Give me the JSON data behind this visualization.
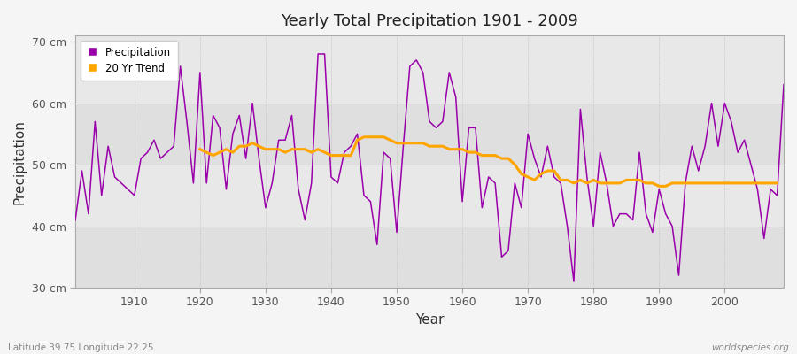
{
  "title": "Yearly Total Precipitation 1901 - 2009",
  "xlabel": "Year",
  "ylabel": "Precipitation",
  "subtitle_left": "Latitude 39.75 Longitude 22.25",
  "subtitle_right": "worldspecies.org",
  "ylim": [
    30,
    71
  ],
  "yticks": [
    30,
    40,
    50,
    60,
    70
  ],
  "ytick_labels": [
    "30 cm",
    "40 cm",
    "50 cm",
    "60 cm",
    "70 cm"
  ],
  "xlim": [
    1901,
    2009
  ],
  "xticks": [
    1910,
    1920,
    1930,
    1940,
    1950,
    1960,
    1970,
    1980,
    1990,
    2000
  ],
  "precip_color": "#9900aa",
  "trend_color": "#ffa500",
  "fig_bg_color": "#f0f0f0",
  "plot_bg_color": "#e8e8e8",
  "years": [
    1901,
    1902,
    1903,
    1904,
    1905,
    1906,
    1907,
    1908,
    1909,
    1910,
    1911,
    1912,
    1913,
    1914,
    1915,
    1916,
    1917,
    1918,
    1919,
    1920,
    1921,
    1922,
    1923,
    1924,
    1925,
    1926,
    1927,
    1928,
    1929,
    1930,
    1931,
    1932,
    1933,
    1934,
    1935,
    1936,
    1937,
    1938,
    1939,
    1940,
    1941,
    1942,
    1943,
    1944,
    1945,
    1946,
    1947,
    1948,
    1949,
    1950,
    1951,
    1952,
    1953,
    1954,
    1955,
    1956,
    1957,
    1958,
    1959,
    1960,
    1961,
    1962,
    1963,
    1964,
    1965,
    1966,
    1967,
    1968,
    1969,
    1970,
    1971,
    1972,
    1973,
    1974,
    1975,
    1976,
    1977,
    1978,
    1979,
    1980,
    1981,
    1982,
    1983,
    1984,
    1985,
    1986,
    1987,
    1988,
    1989,
    1990,
    1991,
    1992,
    1993,
    1994,
    1995,
    1996,
    1997,
    1998,
    1999,
    2000,
    2001,
    2002,
    2003,
    2004,
    2005,
    2006,
    2007,
    2008,
    2009
  ],
  "precip": [
    41,
    49,
    42,
    57,
    45,
    53,
    48,
    47,
    46,
    45,
    51,
    52,
    54,
    51,
    52,
    53,
    66,
    57,
    47,
    65,
    47,
    58,
    56,
    46,
    55,
    58,
    51,
    60,
    51,
    43,
    47,
    54,
    54,
    58,
    46,
    41,
    47,
    68,
    68,
    48,
    47,
    52,
    53,
    55,
    45,
    44,
    37,
    52,
    51,
    39,
    53,
    66,
    67,
    65,
    57,
    56,
    57,
    65,
    61,
    44,
    56,
    56,
    43,
    48,
    47,
    35,
    36,
    47,
    43,
    55,
    51,
    48,
    53,
    48,
    47,
    40,
    31,
    59,
    48,
    40,
    52,
    47,
    40,
    42,
    42,
    41,
    52,
    42,
    39,
    46,
    42,
    40,
    32,
    47,
    53,
    49,
    53,
    60,
    53,
    60,
    57,
    52,
    54,
    50,
    46,
    38,
    46,
    45,
    63
  ],
  "trend": [
    null,
    null,
    null,
    null,
    null,
    null,
    null,
    null,
    null,
    null,
    null,
    null,
    null,
    null,
    null,
    null,
    null,
    null,
    null,
    52.5,
    52.0,
    51.5,
    52.0,
    52.5,
    52.0,
    53.0,
    53.0,
    53.5,
    53.0,
    52.5,
    52.5,
    52.5,
    52.0,
    52.5,
    52.5,
    52.5,
    52.0,
    52.5,
    52.0,
    51.5,
    51.5,
    51.5,
    51.5,
    54.0,
    54.5,
    54.5,
    54.5,
    54.5,
    54.0,
    53.5,
    53.5,
    53.5,
    53.5,
    53.5,
    53.0,
    53.0,
    53.0,
    52.5,
    52.5,
    52.5,
    52.0,
    52.0,
    51.5,
    51.5,
    51.5,
    51.0,
    51.0,
    50.0,
    48.5,
    48.0,
    47.5,
    48.5,
    49.0,
    49.0,
    47.5,
    47.5,
    47.0,
    47.5,
    47.0,
    47.5,
    47.0,
    47.0,
    47.0,
    47.0,
    47.5,
    47.5,
    47.5,
    47.0,
    47.0,
    46.5,
    46.5,
    47.0,
    47.0,
    47.0,
    47.0,
    47.0,
    47.0,
    47.0,
    47.0,
    47.0,
    47.0,
    47.0,
    47.0,
    47.0,
    47.0,
    47.0,
    47.0,
    47.0
  ]
}
